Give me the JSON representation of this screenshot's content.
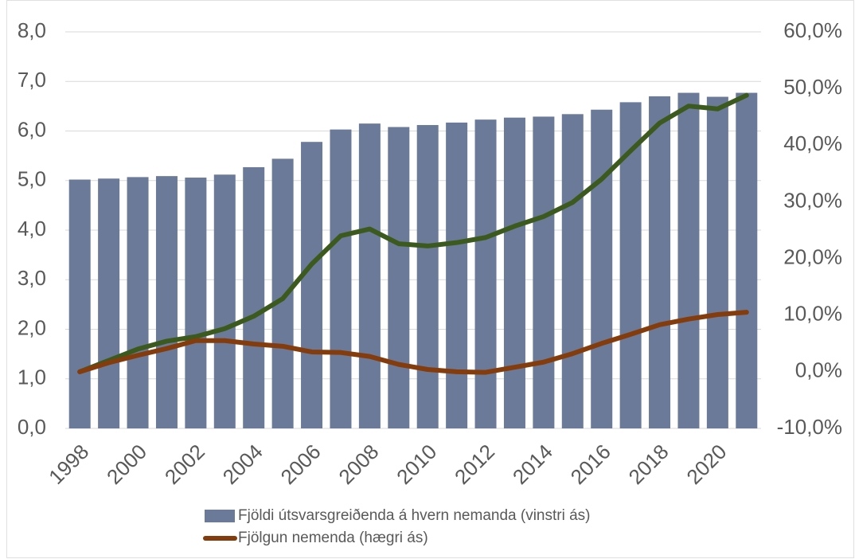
{
  "chart_data": {
    "type": "combo",
    "categories": [
      "1998",
      null,
      "2000",
      null,
      "2002",
      null,
      "2004",
      null,
      "2006",
      null,
      "2008",
      null,
      "2010",
      null,
      "2012",
      null,
      "2014",
      null,
      "2016",
      null,
      "2018",
      null,
      "2020",
      null
    ],
    "series": [
      {
        "name": "Fjöldi útsvarsgreiðenda á hvern nemanda (vinstri ás)",
        "type": "bar",
        "color": "#6b7a99",
        "axis": "y",
        "values": [
          5.02,
          5.04,
          5.07,
          5.09,
          5.06,
          5.12,
          5.27,
          5.44,
          5.78,
          6.03,
          6.15,
          6.08,
          6.12,
          6.17,
          6.23,
          6.27,
          6.29,
          6.34,
          6.43,
          6.58,
          6.7,
          6.77,
          6.69,
          6.77
        ]
      },
      {
        "type": "line",
        "color": "#3d5a1e",
        "axis": "y2",
        "values": [
          0.0,
          2.0,
          4.0,
          5.4,
          6.2,
          7.6,
          9.8,
          12.9,
          19.0,
          24.0,
          25.2,
          22.6,
          22.2,
          22.8,
          23.7,
          25.7,
          27.4,
          29.9,
          34.0,
          39.0,
          43.9,
          46.9,
          46.4,
          48.8
        ]
      },
      {
        "name": "Fjölgun nemenda (hægri ás)",
        "type": "line",
        "color": "#843c0c",
        "axis": "y2",
        "values": [
          0.0,
          1.6,
          2.9,
          4.1,
          5.5,
          5.5,
          4.9,
          4.5,
          3.5,
          3.4,
          2.7,
          1.3,
          0.4,
          0.0,
          -0.1,
          0.8,
          1.7,
          3.2,
          5.0,
          6.6,
          8.3,
          9.3,
          10.1,
          10.5
        ]
      }
    ],
    "ylim": [
      0,
      8
    ],
    "yticks": [
      {
        "value": 0,
        "label": "0,0"
      },
      {
        "value": 1,
        "label": "1,0"
      },
      {
        "value": 2,
        "label": "2,0"
      },
      {
        "value": 3,
        "label": "3,0"
      },
      {
        "value": 4,
        "label": "4,0"
      },
      {
        "value": 5,
        "label": "5,0"
      },
      {
        "value": 6,
        "label": "6,0"
      },
      {
        "value": 7,
        "label": "7,0"
      },
      {
        "value": 8,
        "label": "8,0"
      }
    ],
    "y2lim": [
      -10,
      60
    ],
    "y2ticks": [
      {
        "value": -10,
        "label": "-10,0%"
      },
      {
        "value": 0,
        "label": "0,0%"
      },
      {
        "value": 10,
        "label": "10,0%"
      },
      {
        "value": 20,
        "label": "20,0%"
      },
      {
        "value": 30,
        "label": "30,0%"
      },
      {
        "value": 40,
        "label": "40,0%"
      },
      {
        "value": 50,
        "label": "50,0%"
      },
      {
        "value": 60,
        "label": "60,0%"
      }
    ],
    "grid": true,
    "legend": "bottom"
  }
}
